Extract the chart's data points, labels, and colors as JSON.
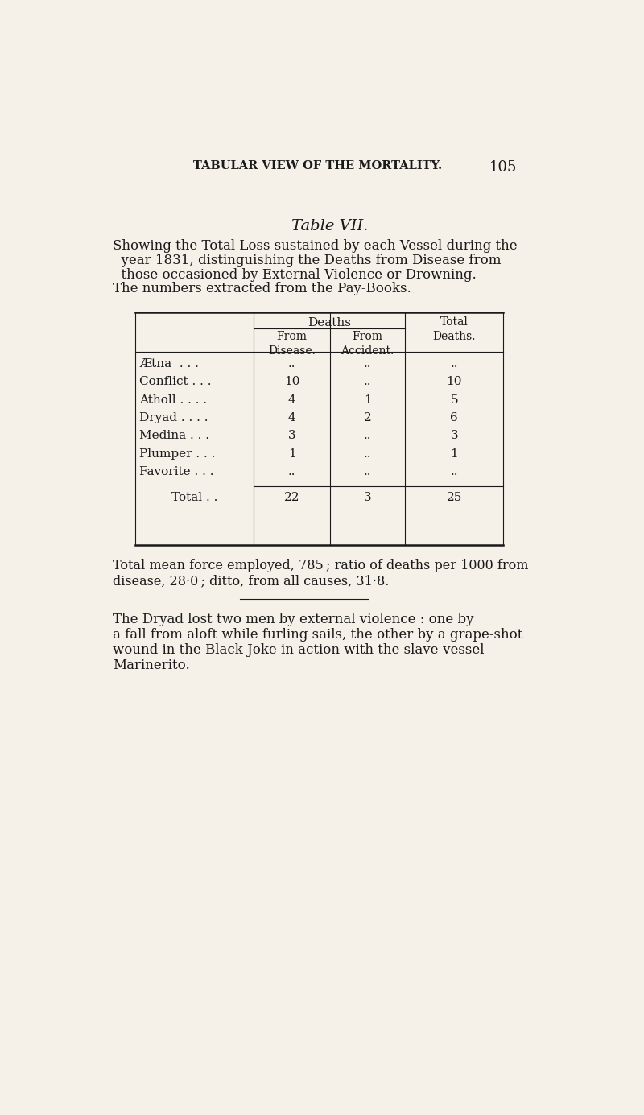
{
  "bg_color": "#f5f0e8",
  "text_color": "#1a1a1a",
  "page_header": "TABULAR VIEW OF THE MORTALITY.",
  "page_number": "105",
  "table_title": "Table VII.",
  "subtitle_lines": [
    "Showing the Total Loss sustained by each Vessel during the",
    "  year 1831, distinguishing the Deaths from Disease from",
    "  those occasioned by External Violence or Drowning.",
    "The numbers extracted from the Pay-Books."
  ],
  "vessels": [
    "Ætna  . . .",
    "Conflict . . .",
    "Atholl . . . .",
    "Dryad . . . .",
    "Medina . . .",
    "Plumper . . .",
    "Favorite . . ."
  ],
  "from_disease": [
    "..",
    "10",
    "4",
    "4",
    "3",
    "1",
    ".."
  ],
  "from_accident": [
    "..",
    "..",
    "1",
    "2",
    "..",
    "..",
    ".."
  ],
  "total_deaths": [
    "..",
    "10",
    "5",
    "6",
    "3",
    "1",
    ".."
  ],
  "total_row_label": "Total . .",
  "total_disease": "22",
  "total_accident": "3",
  "total_total": "25",
  "footnote1": "Total mean force employed, 785 ; ratio of deaths per 1000 from",
  "footnote2": "disease, 28·0 ; ditto, from all causes, 31·8.",
  "para_lines": [
    "The Dryad lost two men by external violence : one by",
    "a fall from aloft while furling sails, the other by a grape-shot",
    "wound in the Black-Joke in action with the slave-vessel",
    "Marinerito."
  ]
}
